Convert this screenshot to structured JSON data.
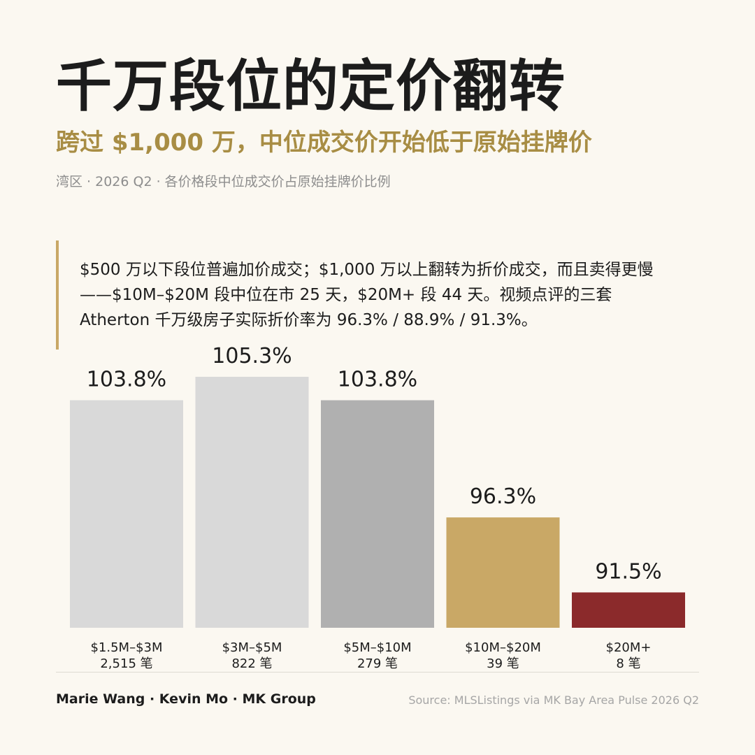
{
  "header": {
    "title": "千万段位的定价翻转",
    "subtitle": "跨过 $1,000 万，中位成交价开始低于原始挂牌价",
    "meta": "湾区 · 2026 Q2 · 各价格段中位成交价占原始挂牌价比例"
  },
  "callout": {
    "text": "$500 万以下段位普遍加价成交；$1,000 万以上翻转为折价成交，而且卖得更慢——$10M–$20M 段中位在市 25 天，$20M+ 段 44 天。视频点评的三套 Atherton 千万级房子实际折价率为 96.3% / 88.9% / 91.3%。"
  },
  "chart_data": {
    "type": "bar",
    "categories": [
      "$1.5M–$3M",
      "$3M–$5M",
      "$5M–$10M",
      "$10M–$20M",
      "$20M+"
    ],
    "counts": [
      "2,515 笔",
      "822 笔",
      "279 笔",
      "39 笔",
      "8 笔"
    ],
    "values": [
      103.8,
      105.3,
      103.8,
      96.3,
      91.5
    ],
    "value_labels": [
      "103.8%",
      "105.3%",
      "103.8%",
      "96.3%",
      "91.5%"
    ],
    "colors": [
      "#d9d9d9",
      "#d9d9d9",
      "#b0b0b0",
      "#c9a866",
      "#8b2a2b"
    ],
    "title": "",
    "xlabel": "",
    "ylabel": "",
    "grid": false
  },
  "footer": {
    "authors": "Marie Wang · Kevin Mo · MK Group",
    "source": "Source: MLSListings via MK Bay Area Pulse 2026 Q2"
  }
}
